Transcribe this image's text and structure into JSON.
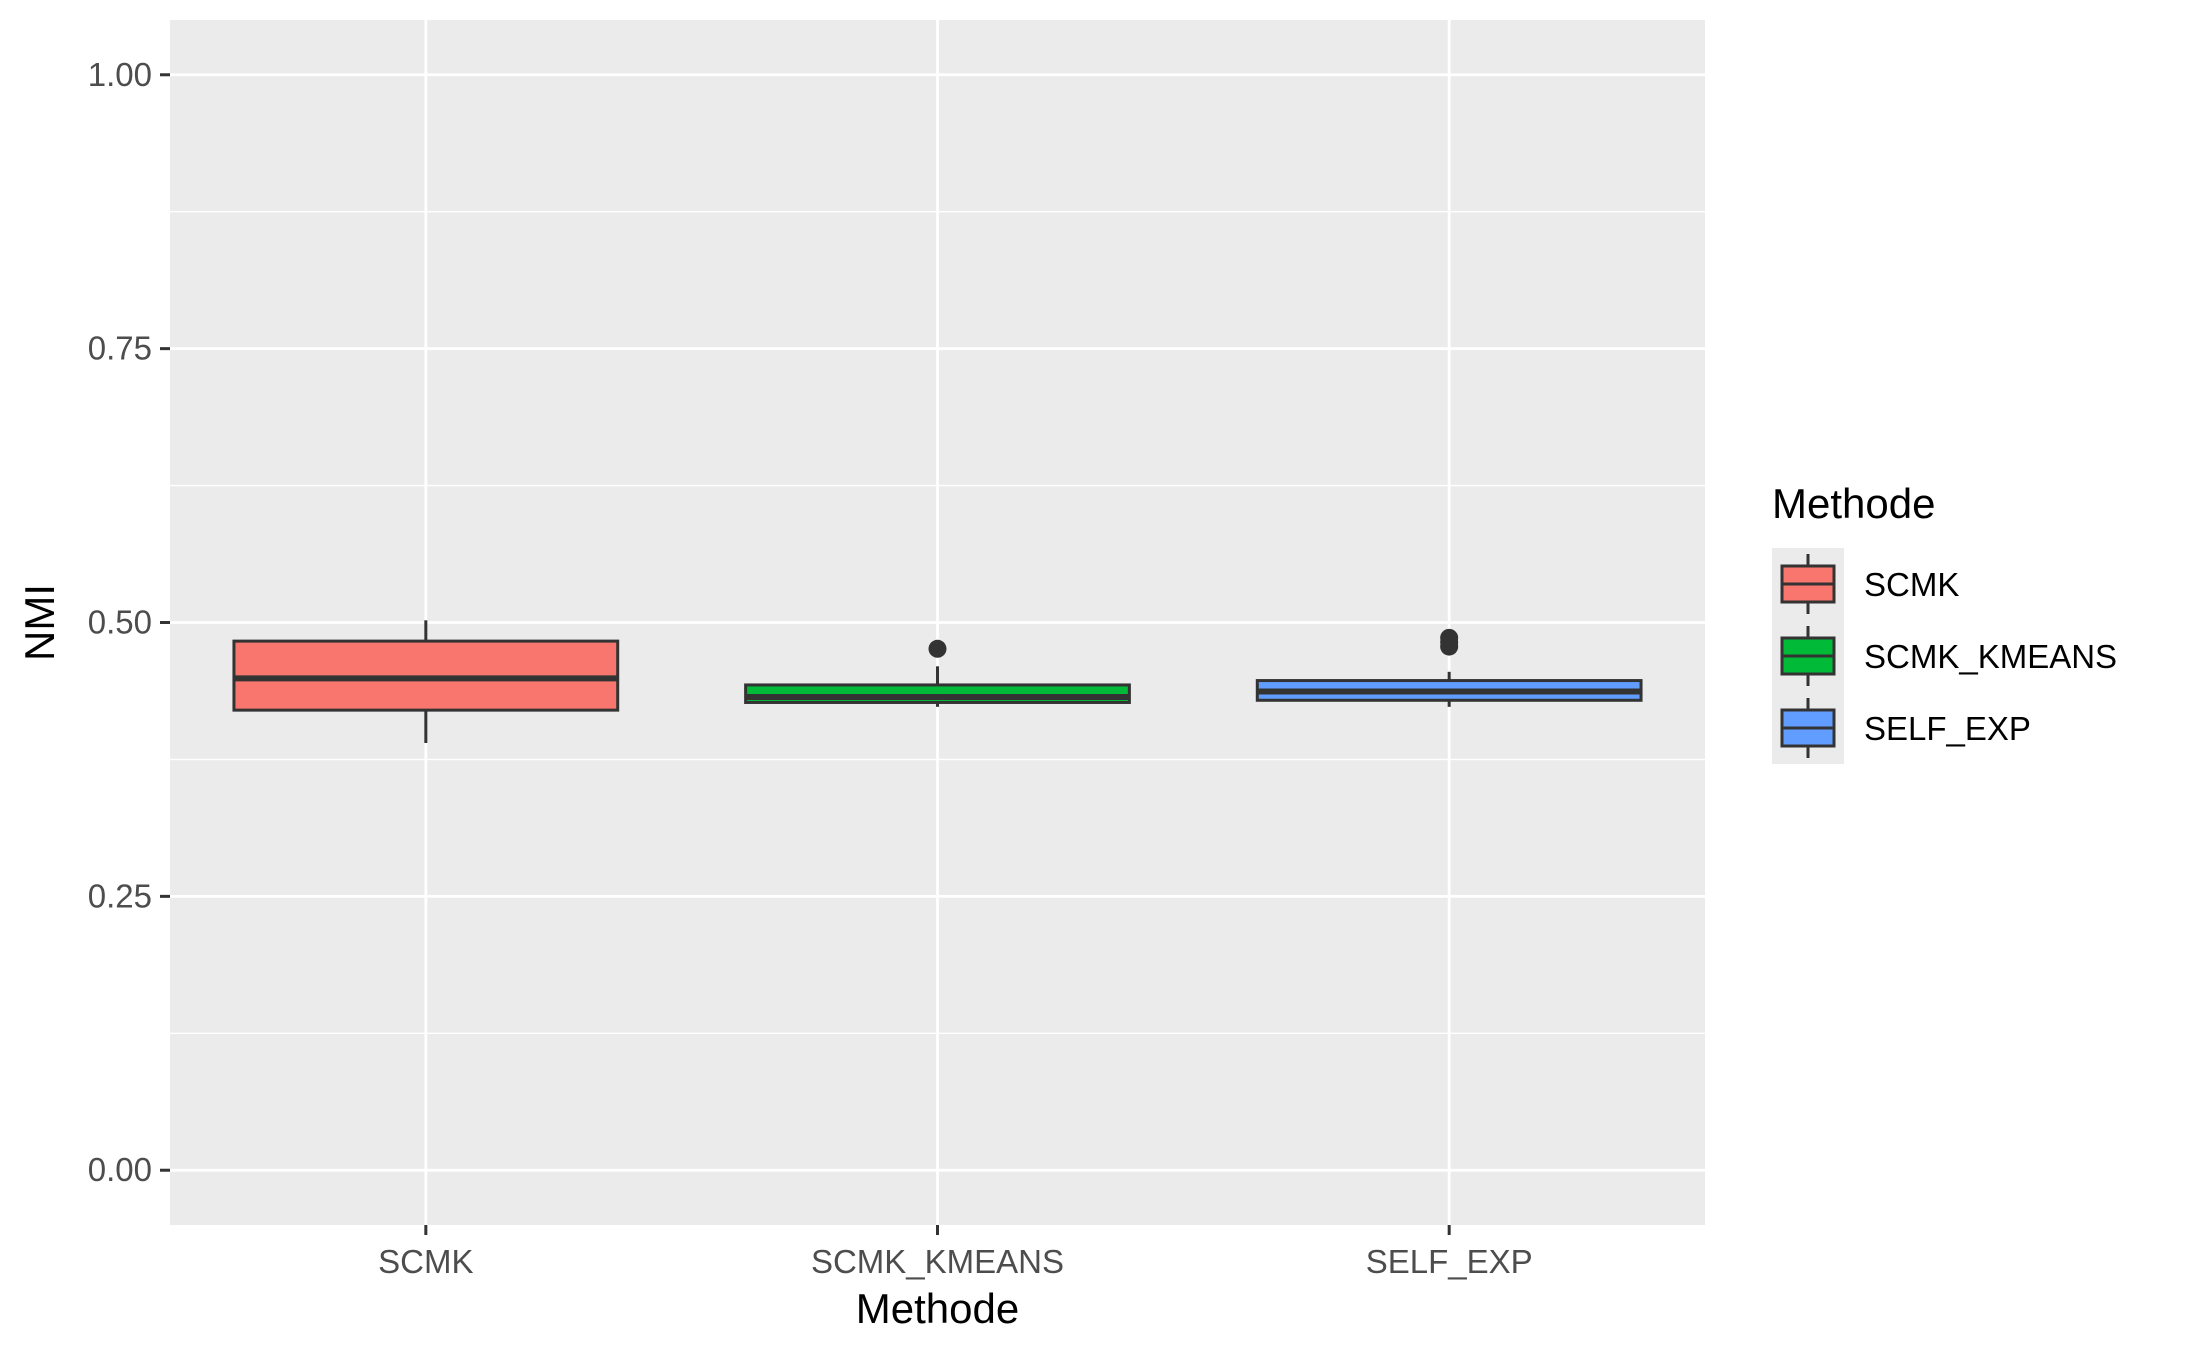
{
  "chart_data": {
    "type": "box",
    "xlabel": "Methode",
    "ylabel": "NMI",
    "ylim": [
      -0.05,
      1.05
    ],
    "y_ticks": [
      0.0,
      0.25,
      0.5,
      0.75,
      1.0
    ],
    "y_tick_labels": [
      "0.00",
      "0.25",
      "0.50",
      "0.75",
      "1.00"
    ],
    "categories": [
      "SCMK",
      "SCMK_KMEANS",
      "SELF_EXP"
    ],
    "series": [
      {
        "name": "SCMK",
        "color": "#F8766D",
        "whisker_low": 0.39,
        "q1": 0.42,
        "median": 0.449,
        "q3": 0.483,
        "whisker_high": 0.502,
        "outliers": []
      },
      {
        "name": "SCMK_KMEANS",
        "color": "#00BA38",
        "whisker_low": 0.423,
        "q1": 0.427,
        "median": 0.432,
        "q3": 0.443,
        "whisker_high": 0.46,
        "outliers": [
          0.476
        ]
      },
      {
        "name": "SELF_EXP",
        "color": "#619CFF",
        "whisker_low": 0.423,
        "q1": 0.429,
        "median": 0.437,
        "q3": 0.447,
        "whisker_high": 0.455,
        "outliers": [
          0.478,
          0.482,
          0.486
        ]
      }
    ],
    "grid": true,
    "panel_background": "#EBEBEB",
    "grid_color": "#FFFFFF",
    "legend": {
      "title": "Methode",
      "position": "right"
    }
  }
}
